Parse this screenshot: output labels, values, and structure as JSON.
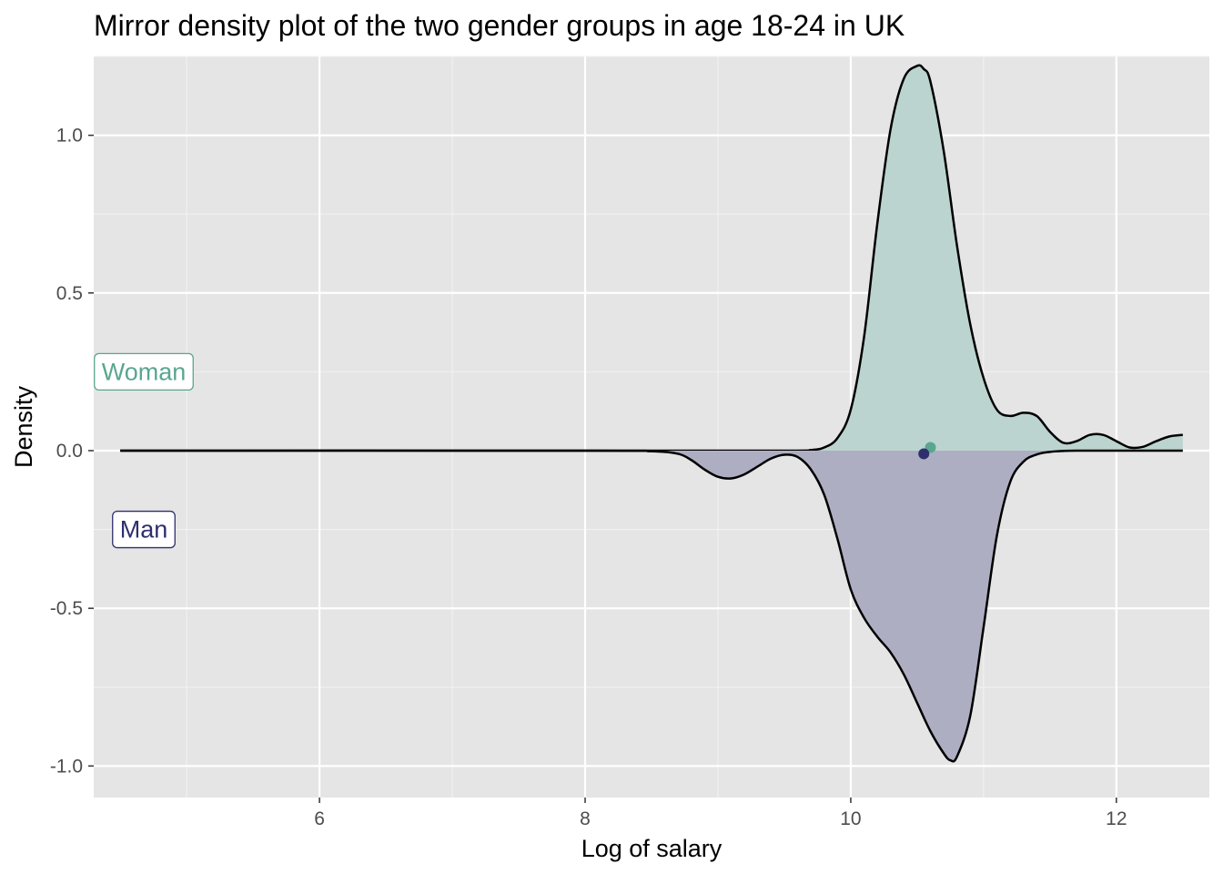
{
  "chart_data": {
    "type": "area",
    "title": "Mirror density plot of the two gender groups in age 18-24 in UK",
    "xlabel": "Log of salary",
    "ylabel": "Density",
    "xlim": [
      4.3,
      12.7
    ],
    "ylim": [
      -1.1,
      1.25
    ],
    "x_ticks": [
      6,
      8,
      10,
      12
    ],
    "x_tick_labels": [
      "6",
      "8",
      "10",
      "12"
    ],
    "y_ticks": [
      -1.0,
      -0.5,
      0.0,
      0.5,
      1.0
    ],
    "y_tick_labels": [
      "-1.0",
      "-0.5",
      "0.0",
      "0.5",
      "1.0"
    ],
    "grid": true,
    "legend": "none",
    "series": [
      {
        "label_text": "Woman",
        "color": "#5aa68f",
        "fill": "#bcd4cf",
        "direction": "up",
        "x": [
          4.5,
          8.0,
          9.5,
          9.7,
          9.8,
          9.9,
          10.0,
          10.1,
          10.2,
          10.3,
          10.4,
          10.5,
          10.55,
          10.6,
          10.7,
          10.8,
          10.9,
          11.0,
          11.1,
          11.2,
          11.3,
          11.4,
          11.5,
          11.6,
          11.7,
          11.8,
          11.9,
          12.0,
          12.1,
          12.2,
          12.3,
          12.4,
          12.5
        ],
        "y": [
          0.0,
          0.0,
          0.0,
          0.002,
          0.01,
          0.04,
          0.13,
          0.36,
          0.72,
          1.02,
          1.18,
          1.22,
          1.21,
          1.17,
          0.95,
          0.65,
          0.4,
          0.23,
          0.13,
          0.11,
          0.12,
          0.11,
          0.06,
          0.025,
          0.03,
          0.05,
          0.05,
          0.03,
          0.01,
          0.012,
          0.03,
          0.045,
          0.05
        ],
        "marker": {
          "x": 10.6,
          "y": 0.01
        }
      },
      {
        "label_text": "Man",
        "color": "#2f2f6e",
        "fill": "#aeaec2",
        "direction": "down",
        "x": [
          4.5,
          8.0,
          8.5,
          8.7,
          8.8,
          8.9,
          9.0,
          9.1,
          9.2,
          9.3,
          9.4,
          9.5,
          9.6,
          9.7,
          9.8,
          9.9,
          10.0,
          10.1,
          10.2,
          10.3,
          10.4,
          10.5,
          10.6,
          10.7,
          10.75,
          10.8,
          10.9,
          11.0,
          11.1,
          11.2,
          11.3,
          11.4,
          11.5,
          11.6,
          11.7,
          12.0,
          12.5
        ],
        "y": [
          0.0,
          0.0,
          0.002,
          0.01,
          0.03,
          0.06,
          0.083,
          0.088,
          0.075,
          0.05,
          0.025,
          0.013,
          0.02,
          0.06,
          0.14,
          0.28,
          0.44,
          0.53,
          0.59,
          0.64,
          0.71,
          0.8,
          0.89,
          0.96,
          0.982,
          0.97,
          0.84,
          0.56,
          0.27,
          0.1,
          0.035,
          0.012,
          0.004,
          0.001,
          0.0,
          0.0,
          0.0
        ],
        "marker": {
          "x": 10.55,
          "y": -0.01
        }
      }
    ]
  }
}
